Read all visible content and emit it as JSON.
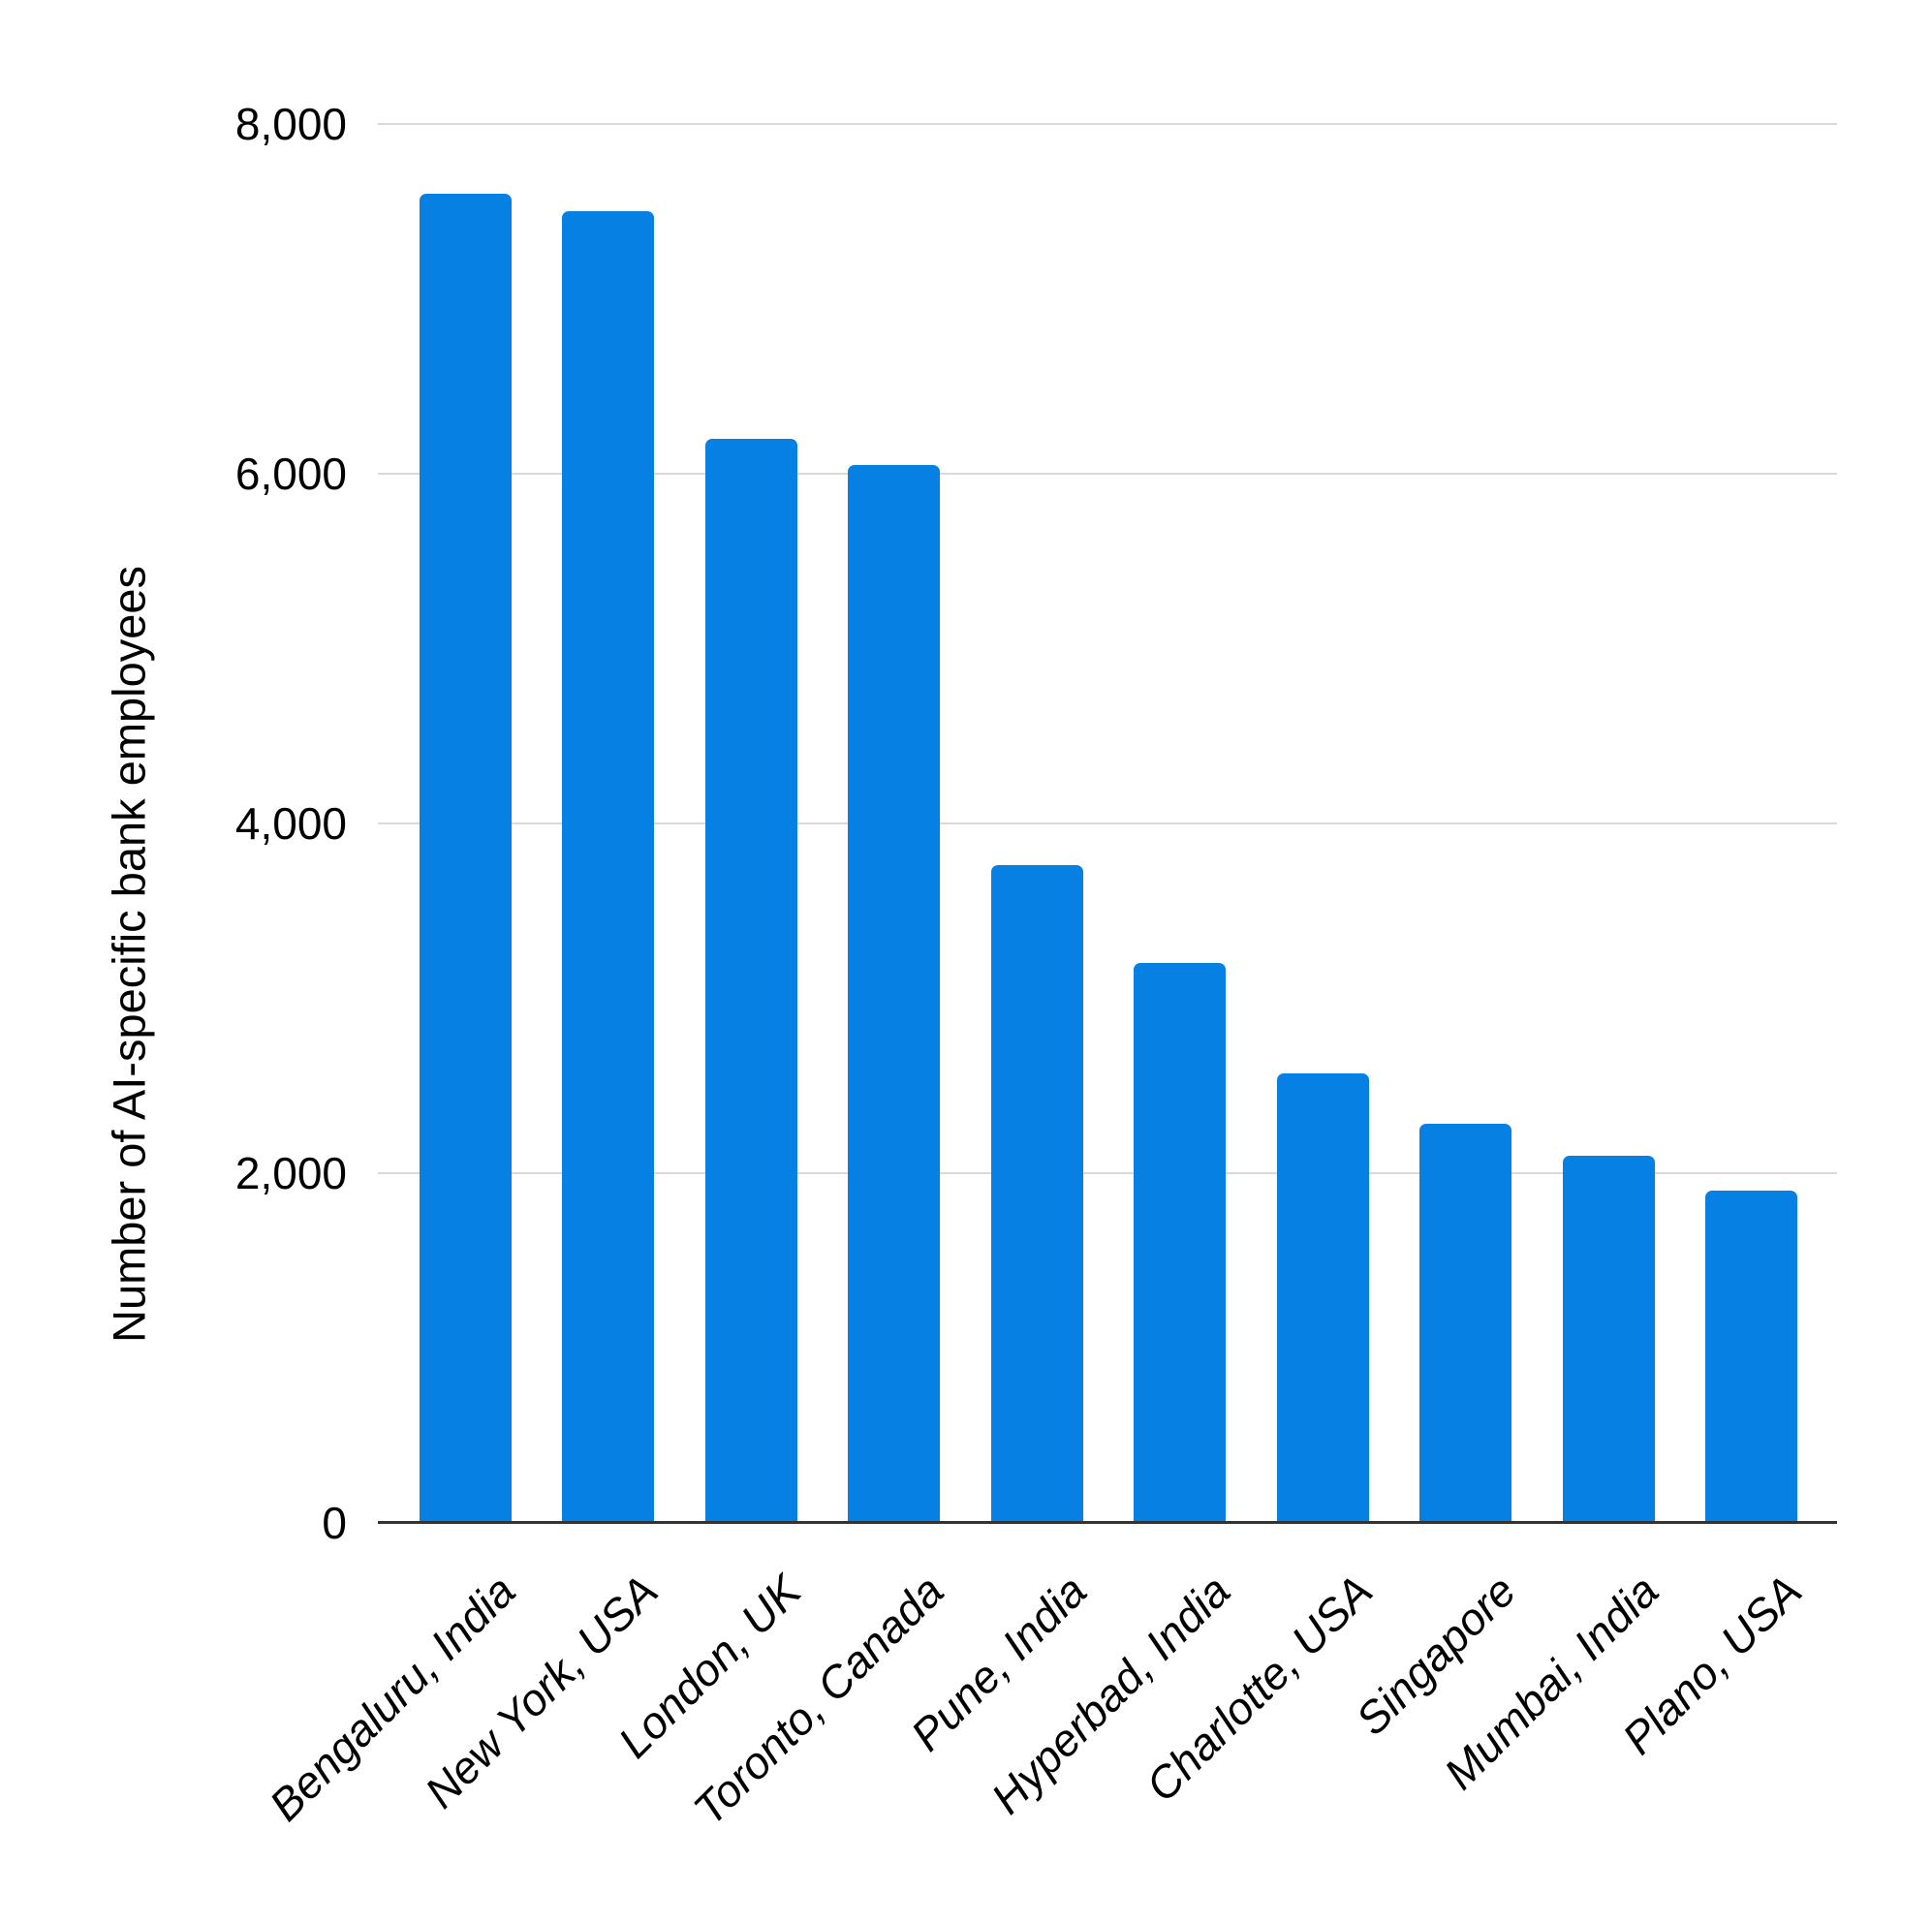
{
  "chart_data": {
    "type": "bar",
    "title": "",
    "ylabel": "Number of AI-specific bank employees",
    "xlabel": "",
    "categories": [
      "Bengaluru, India",
      "New York, USA",
      "London, UK",
      "Toronto, Canada",
      "Pune, India",
      "Hyperbad, India",
      "Charlotte, USA",
      "Singapore",
      "Mumbai, India",
      "Plano, USA"
    ],
    "values": [
      7600,
      7500,
      6200,
      6050,
      3760,
      3200,
      2570,
      2280,
      2100,
      1900
    ],
    "ylim": [
      0,
      8000
    ],
    "yticks": [
      0,
      2000,
      4000,
      6000,
      8000
    ],
    "ytick_labels": [
      "0",
      "2,000",
      "4,000",
      "6,000",
      "8,000"
    ],
    "grid": "horizontal-only",
    "legend": "none",
    "colors": {
      "bar": "#0780e4",
      "gridline": "#d9d9d9",
      "axis_line": "#333333",
      "text": "#000000",
      "background": "#ffffff"
    }
  }
}
